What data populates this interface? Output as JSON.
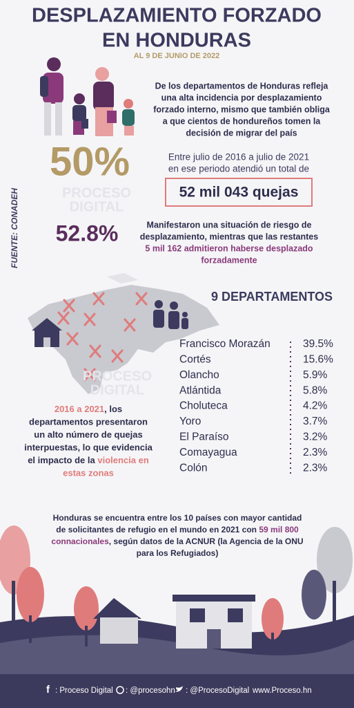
{
  "header": {
    "title_lines": [
      "DESPLAZAMIENTO FORZADO",
      "EN HONDURAS"
    ],
    "date": "AL 9 DE JUNIO DE 2022"
  },
  "intro": {
    "lines": [
      "De los departamentos de Honduras refleja",
      "una alta incidencia por desplazamiento",
      "forzado interno, mismo que también obliga",
      "a que cientos de hondureños tomen la",
      "decisión de migrar del país"
    ]
  },
  "watermark": [
    "PROCESO",
    "DIGITAL"
  ],
  "source": "FUENTE: CONADEH",
  "complaints": {
    "percent": "50%",
    "lines": [
      "Entre julio de 2016 a julio de 2021",
      "en ese periodo atendió un total de"
    ],
    "total": "52 mil 043 quejas"
  },
  "risk": {
    "percent": "52.8%",
    "lines": [
      "Manifestaron una situación de riesgo de",
      "desplazamiento, mientras que las restantes"
    ],
    "highlight_lines": [
      "5 mil 162 admitieron haberse desplazado",
      "forzadamente"
    ]
  },
  "departments": {
    "title": "9 DEPARTAMENTOS",
    "rows": [
      [
        "Francisco Morazán",
        "39.5%"
      ],
      [
        "Cortés",
        "15.6%"
      ],
      [
        "Olancho",
        "5.9%"
      ],
      [
        "Atlántida",
        "5.8%"
      ],
      [
        "Choluteca",
        "4.2%"
      ],
      [
        "Yoro",
        "3.7%"
      ],
      [
        "El Paraíso",
        "3.2%"
      ],
      [
        "Comayagua",
        "2.3%"
      ],
      [
        "Colón",
        "2.3%"
      ]
    ]
  },
  "impact": {
    "lines": [
      [
        {
          "text": "2016 a 2021",
          "color": "#e07b7b"
        },
        {
          "text": ", los",
          "color": "#2e2d4d"
        }
      ],
      [
        {
          "text": "departamentos  presentaron",
          "color": "#2e2d4d"
        }
      ],
      [
        {
          "text": "un alto número de quejas",
          "color": "#2e2d4d"
        }
      ],
      [
        {
          "text": "interpuestas, lo que evidencia",
          "color": "#2e2d4d"
        }
      ],
      [
        {
          "text": "el impacto de la ",
          "color": "#2e2d4d"
        },
        {
          "text": "violencia en",
          "color": "#e07b7b"
        }
      ],
      [
        {
          "text": "estas zonas",
          "color": "#e07b7b"
        }
      ]
    ]
  },
  "closing": {
    "lines": [
      [
        {
          "text": "Honduras se encuentra entre los 10 países con mayor cantidad",
          "color": "#2e2d4d"
        }
      ],
      [
        {
          "text": "de solicitantes de refugio en el mundo en 2021 con ",
          "color": "#2e2d4d"
        },
        {
          "text": "59 mil 800",
          "color": "#8a3a7a"
        }
      ],
      [
        {
          "text": "connacionales",
          "color": "#8a3a7a"
        },
        {
          "text": ", según datos de la ACNUR (la Agencia de la ONU",
          "color": "#2e2d4d"
        }
      ],
      [
        {
          "text": "para los Refugiados)",
          "color": "#2e2d4d"
        }
      ]
    ]
  },
  "footer": [
    ": Proceso Digital",
    ": @procesohn",
    ": @ProcesoDigital",
    "www.Proceso.hn"
  ]
}
